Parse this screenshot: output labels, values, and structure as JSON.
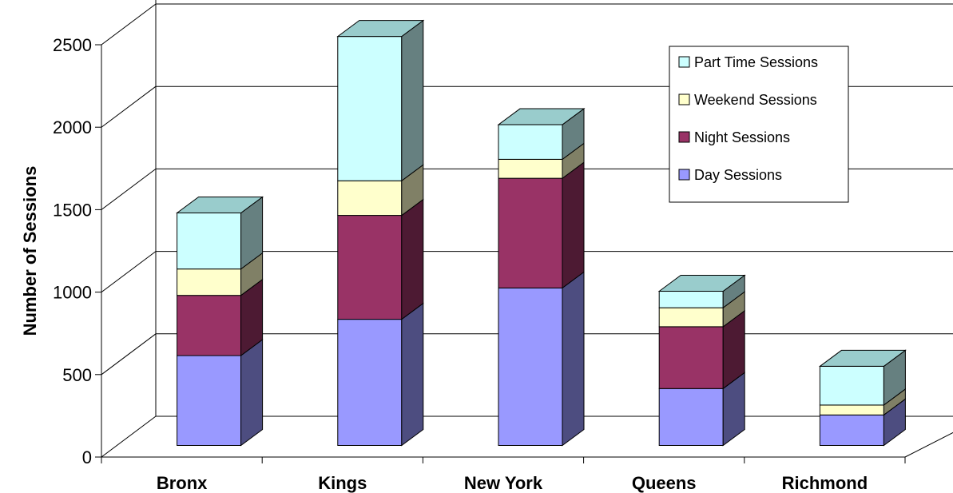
{
  "chart_data": {
    "type": "bar",
    "stacked": true,
    "three_d": true,
    "categories": [
      "Bronx",
      "Kings",
      "New York",
      "Queens",
      "Richmond"
    ],
    "series": [
      {
        "name": "Day Sessions",
        "values": [
          545,
          765,
          955,
          345,
          185
        ],
        "front": "#9999ff",
        "side": "#4d4d80",
        "top": "#b3b3ff"
      },
      {
        "name": "Night Sessions",
        "values": [
          365,
          630,
          665,
          375,
          0
        ],
        "front": "#993366",
        "side": "#4d1a33",
        "top": "#b35c85"
      },
      {
        "name": "Weekend Sessions",
        "values": [
          160,
          210,
          115,
          115,
          60
        ],
        "front": "#ffffcc",
        "side": "#808066",
        "top": "#ffffe0"
      },
      {
        "name": "Part Time Sessions",
        "values": [
          340,
          875,
          210,
          100,
          235
        ],
        "front": "#ccffff",
        "side": "#668080",
        "top": "#99cccc"
      }
    ],
    "ylabel": "Number of Sessions",
    "xlabel": "",
    "ylim": [
      0,
      2500
    ],
    "yticks": [
      0,
      500,
      1000,
      1500,
      2000,
      2500
    ],
    "grid": true,
    "legend_position": "top-right",
    "legend_order": [
      "Part Time Sessions",
      "Weekend Sessions",
      "Night Sessions",
      "Day Sessions"
    ]
  }
}
